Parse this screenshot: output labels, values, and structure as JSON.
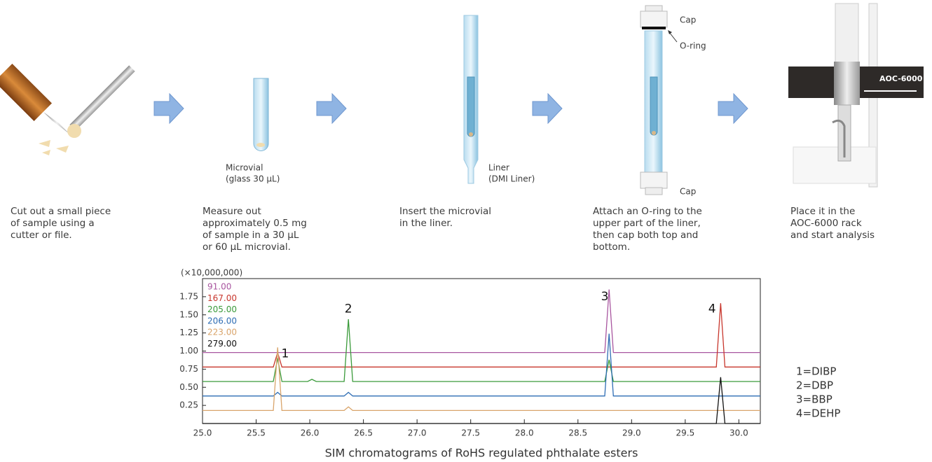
{
  "steps": [
    {
      "caption_lines": [
        "Cut out a small piece",
        "of sample using a",
        "cutter or file."
      ]
    },
    {
      "labels": [
        "Microvial",
        "(glass 30 µL)"
      ],
      "caption_lines": [
        "Measure out",
        "approximately 0.5 mg",
        "of sample in a 30 µL",
        "or 60 µL microvial."
      ]
    },
    {
      "labels": [
        "Liner",
        "(DMI Liner)"
      ],
      "caption_lines": [
        "Insert the microvial",
        "in the liner."
      ]
    },
    {
      "labels": [
        "Cap",
        "O-ring",
        "Cap"
      ],
      "caption_lines": [
        "Attach an O-ring to the",
        "upper part of the liner,",
        "then cap both top and",
        "bottom."
      ]
    },
    {
      "labels": [
        "AOC-6000"
      ],
      "caption_lines": [
        "Place it in the",
        "AOC-6000 rack",
        "and start analysis"
      ]
    }
  ],
  "chart_data": {
    "type": "line",
    "y_unit_label": "(×10,000,000)",
    "caption": "SIM chromatograms of RoHS regulated phthalate esters",
    "xlim": [
      25.0,
      30.2
    ],
    "ylim": [
      0,
      2.0
    ],
    "xticks": [
      {
        "value": 25,
        "label": "25.0"
      },
      25.5,
      {
        "value": 26,
        "label": "26.0"
      },
      26.5,
      {
        "value": 27,
        "label": "27.0"
      },
      27.5,
      {
        "value": 28,
        "label": "28.0"
      },
      28.5,
      {
        "value": 29,
        "label": "29.0"
      },
      29.5,
      {
        "value": 30,
        "label": "30.0"
      }
    ],
    "yticks": [
      0.25,
      {
        "value": 0.5,
        "label": "0.50"
      },
      0.75,
      {
        "value": 1,
        "label": "1.00"
      },
      1.25,
      {
        "value": 1.5,
        "label": "1.50"
      },
      1.75
    ],
    "series": [
      {
        "name": "91.00",
        "color": "#a8559f",
        "x": [
          25.0,
          28.75,
          28.79,
          28.83,
          30.2
        ],
        "values": [
          0.98,
          0.98,
          1.85,
          0.98,
          0.98
        ]
      },
      {
        "name": "167.00",
        "color": "#c8372d",
        "x": [
          25.0,
          25.66,
          25.7,
          25.74,
          29.79,
          29.83,
          29.87,
          30.2
        ],
        "values": [
          0.78,
          0.78,
          0.98,
          0.78,
          0.78,
          1.66,
          0.78,
          0.78
        ]
      },
      {
        "name": "205.00",
        "color": "#3a9a3a",
        "x": [
          25.0,
          25.66,
          25.7,
          25.74,
          25.98,
          26.02,
          26.06,
          26.32,
          26.36,
          26.4,
          28.75,
          28.79,
          28.83,
          30.2
        ],
        "values": [
          0.58,
          0.58,
          0.9,
          0.58,
          0.58,
          0.61,
          0.58,
          0.58,
          1.44,
          0.58,
          0.58,
          0.88,
          0.58,
          0.58
        ]
      },
      {
        "name": "206.00",
        "color": "#2e6db4",
        "x": [
          25.0,
          25.66,
          25.7,
          25.74,
          26.32,
          26.36,
          26.4,
          28.75,
          28.79,
          28.83,
          30.2
        ],
        "values": [
          0.38,
          0.38,
          0.43,
          0.38,
          0.38,
          0.43,
          0.38,
          0.38,
          1.24,
          0.38,
          0.38
        ]
      },
      {
        "name": "223.00",
        "color": "#d9a46a",
        "x": [
          25.0,
          25.66,
          25.7,
          25.74,
          26.32,
          26.36,
          26.4,
          30.2
        ],
        "values": [
          0.18,
          0.18,
          1.05,
          0.18,
          0.18,
          0.23,
          0.18,
          0.18
        ]
      },
      {
        "name": "279.00",
        "color": "#111111",
        "x": [
          25.0,
          29.79,
          29.83,
          29.87,
          30.2
        ],
        "values": [
          0,
          0,
          0.64,
          0,
          0
        ]
      }
    ],
    "annotations": [
      {
        "text": "1",
        "x": 25.77,
        "y": 0.96
      },
      {
        "text": "2",
        "x": 26.36,
        "y": 1.58
      },
      {
        "text": "3",
        "x": 28.75,
        "y": 1.75
      },
      {
        "text": "4",
        "x": 29.75,
        "y": 1.58
      }
    ],
    "peak_legend": [
      "1=DIBP",
      "2=DBP",
      "3=BBP",
      "4=DEHP"
    ]
  }
}
